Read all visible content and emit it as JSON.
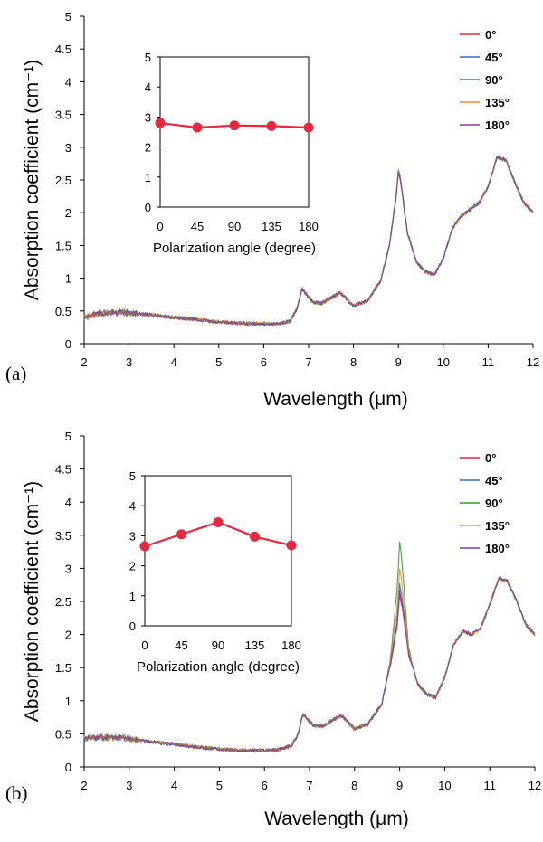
{
  "chart_data": [
    {
      "type": "line",
      "panel_label": "(a)",
      "xlabel": "Wavelength (μm)",
      "ylabel": "Absorption coefficient (cm⁻¹)",
      "xlim": [
        2,
        12
      ],
      "ylim": [
        0,
        5
      ],
      "xticks": [
        "2",
        "3",
        "4",
        "5",
        "6",
        "7",
        "8",
        "9",
        "10",
        "11",
        "12"
      ],
      "yticks": [
        "0",
        "0.5",
        "1",
        "1.5",
        "2",
        "2.5",
        "3",
        "3.5",
        "4",
        "4.5",
        "5"
      ],
      "grid": false,
      "legend_position": "top-right",
      "series": [
        {
          "name": "0°",
          "color": "#e8283c",
          "peak_scale": 1.0
        },
        {
          "name": "45°",
          "color": "#2e6fc4",
          "peak_scale": 0.99
        },
        {
          "name": "90°",
          "color": "#2ca02c",
          "peak_scale": 1.01
        },
        {
          "name": "135°",
          "color": "#f28c28",
          "peak_scale": 1.0
        },
        {
          "name": "180°",
          "color": "#7b3fa0",
          "peak_scale": 0.99
        }
      ],
      "base_curve": {
        "x": [
          2.0,
          2.2,
          2.5,
          2.8,
          3.0,
          3.5,
          4.0,
          4.5,
          5.0,
          5.5,
          6.0,
          6.3,
          6.6,
          6.75,
          6.85,
          6.95,
          7.1,
          7.3,
          7.5,
          7.7,
          7.85,
          8.0,
          8.3,
          8.6,
          8.8,
          8.95,
          9.0,
          9.05,
          9.2,
          9.4,
          9.6,
          9.8,
          10.0,
          10.2,
          10.4,
          10.6,
          10.8,
          11.0,
          11.2,
          11.4,
          11.6,
          11.8,
          12.0
        ],
        "y": [
          0.4,
          0.44,
          0.47,
          0.48,
          0.47,
          0.44,
          0.4,
          0.37,
          0.33,
          0.31,
          0.3,
          0.3,
          0.35,
          0.55,
          0.85,
          0.75,
          0.63,
          0.62,
          0.7,
          0.78,
          0.68,
          0.58,
          0.65,
          0.95,
          1.5,
          2.25,
          2.65,
          2.5,
          1.7,
          1.25,
          1.1,
          1.05,
          1.3,
          1.75,
          1.95,
          2.05,
          2.15,
          2.4,
          2.85,
          2.8,
          2.45,
          2.15,
          2.0
        ]
      },
      "inset": {
        "type": "line",
        "xlabel": "Polarization angle (degree)",
        "categories": [
          "0",
          "45",
          "90",
          "135",
          "180"
        ],
        "values": [
          2.8,
          2.65,
          2.72,
          2.7,
          2.65
        ],
        "yticks": [
          "0",
          "1",
          "2",
          "3",
          "4",
          "5"
        ],
        "ylim": [
          0,
          5
        ],
        "color": "#e8283c"
      }
    },
    {
      "type": "line",
      "panel_label": "(b)",
      "xlabel": "Wavelength (μm)",
      "ylabel": "Absorption coefficient (cm⁻¹)",
      "xlim": [
        2,
        12
      ],
      "ylim": [
        0,
        5
      ],
      "xticks": [
        "2",
        "3",
        "4",
        "5",
        "6",
        "7",
        "8",
        "9",
        "10",
        "11",
        "12"
      ],
      "yticks": [
        "0",
        "0.5",
        "1",
        "1.5",
        "2",
        "2.5",
        "3",
        "3.5",
        "4",
        "4.5",
        "5"
      ],
      "grid": false,
      "legend_position": "top-right",
      "series": [
        {
          "name": "0°",
          "color": "#e8283c",
          "peak_scale": 0.86
        },
        {
          "name": "45°",
          "color": "#2e6fc4",
          "peak_scale": 0.91
        },
        {
          "name": "90°",
          "color": "#2ca02c",
          "peak_scale": 1.12
        },
        {
          "name": "135°",
          "color": "#f28c28",
          "peak_scale": 0.99
        },
        {
          "name": "180°",
          "color": "#7b3fa0",
          "peak_scale": 0.88
        }
      ],
      "base_curve": {
        "x": [
          2.0,
          2.2,
          2.5,
          2.8,
          3.0,
          3.5,
          4.0,
          4.5,
          5.0,
          5.5,
          6.0,
          6.3,
          6.6,
          6.75,
          6.85,
          6.95,
          7.1,
          7.3,
          7.5,
          7.7,
          7.85,
          8.0,
          8.3,
          8.6,
          8.8,
          8.95,
          9.0,
          9.05,
          9.2,
          9.4,
          9.6,
          9.8,
          10.0,
          10.2,
          10.4,
          10.6,
          10.8,
          11.0,
          11.2,
          11.4,
          11.6,
          11.8,
          12.0
        ],
        "y": [
          0.42,
          0.44,
          0.45,
          0.44,
          0.42,
          0.38,
          0.34,
          0.3,
          0.27,
          0.25,
          0.25,
          0.26,
          0.32,
          0.5,
          0.8,
          0.72,
          0.62,
          0.62,
          0.7,
          0.78,
          0.68,
          0.57,
          0.65,
          0.95,
          1.6,
          2.45,
          3.05,
          2.8,
          1.75,
          1.25,
          1.1,
          1.05,
          1.35,
          1.85,
          2.05,
          2.0,
          2.1,
          2.45,
          2.85,
          2.8,
          2.5,
          2.15,
          2.0
        ]
      },
      "inset": {
        "type": "line",
        "xlabel": "Polarization angle (degree)",
        "categories": [
          "0",
          "45",
          "90",
          "135",
          "180"
        ],
        "values": [
          2.65,
          3.05,
          3.45,
          2.97,
          2.68
        ],
        "yticks": [
          "0",
          "1",
          "2",
          "3",
          "4",
          "5"
        ],
        "ylim": [
          0,
          5
        ],
        "color": "#e8283c"
      }
    }
  ]
}
